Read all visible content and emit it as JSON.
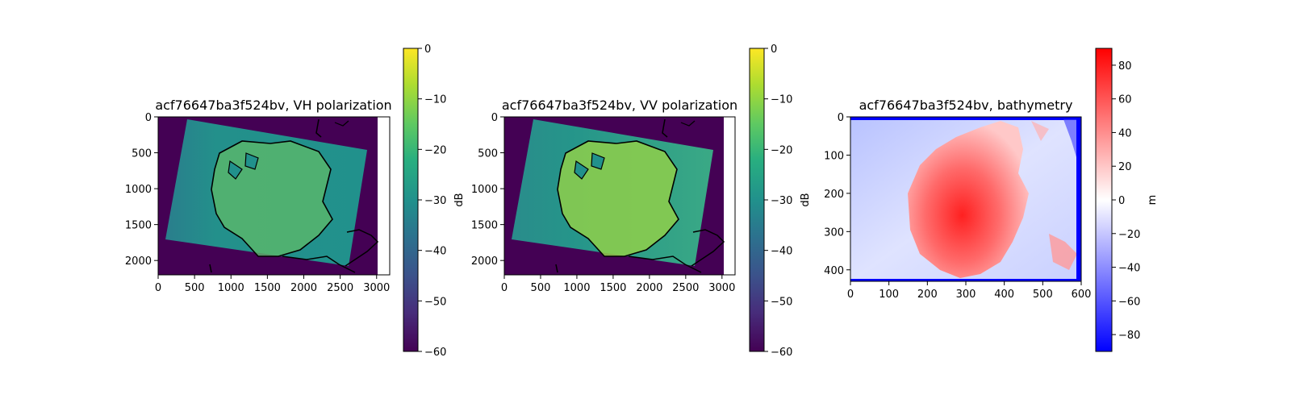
{
  "chart_data": [
    {
      "type": "heatmap",
      "title": "acf76647ba3f524bv, VH polarization",
      "x_ticks": [
        0,
        500,
        1000,
        1500,
        2000,
        2500,
        3000
      ],
      "y_ticks": [
        0,
        500,
        1000,
        1500,
        2000
      ],
      "xlim": [
        0,
        3180
      ],
      "ylim": [
        2200,
        0
      ],
      "colormap": "viridis",
      "colorbar": {
        "label": "dB",
        "ticks": [
          0,
          -10,
          -20,
          -30,
          -40,
          -50,
          -60
        ],
        "range": [
          -60,
          0
        ]
      },
      "coastline_overlay": true
    },
    {
      "type": "heatmap",
      "title": "acf76647ba3f524bv, VV polarization",
      "x_ticks": [
        0,
        500,
        1000,
        1500,
        2000,
        2500,
        3000
      ],
      "y_ticks": [
        0,
        500,
        1000,
        1500,
        2000
      ],
      "xlim": [
        0,
        3180
      ],
      "ylim": [
        2200,
        0
      ],
      "colormap": "viridis",
      "colorbar": {
        "label": "dB",
        "ticks": [
          0,
          -10,
          -20,
          -30,
          -40,
          -50,
          -60
        ],
        "range": [
          -60,
          0
        ]
      },
      "coastline_overlay": true
    },
    {
      "type": "heatmap",
      "title": "acf76647ba3f524bv, bathymetry",
      "x_ticks": [
        0,
        100,
        200,
        300,
        400,
        500,
        600
      ],
      "y_ticks": [
        0,
        100,
        200,
        300,
        400
      ],
      "xlim": [
        0,
        600
      ],
      "ylim": [
        430,
        0
      ],
      "colormap": "bwr",
      "colorbar": {
        "label": "m",
        "ticks": [
          80,
          60,
          40,
          20,
          0,
          -20,
          -40,
          -60,
          -80
        ],
        "range": [
          -90,
          90
        ]
      }
    }
  ]
}
